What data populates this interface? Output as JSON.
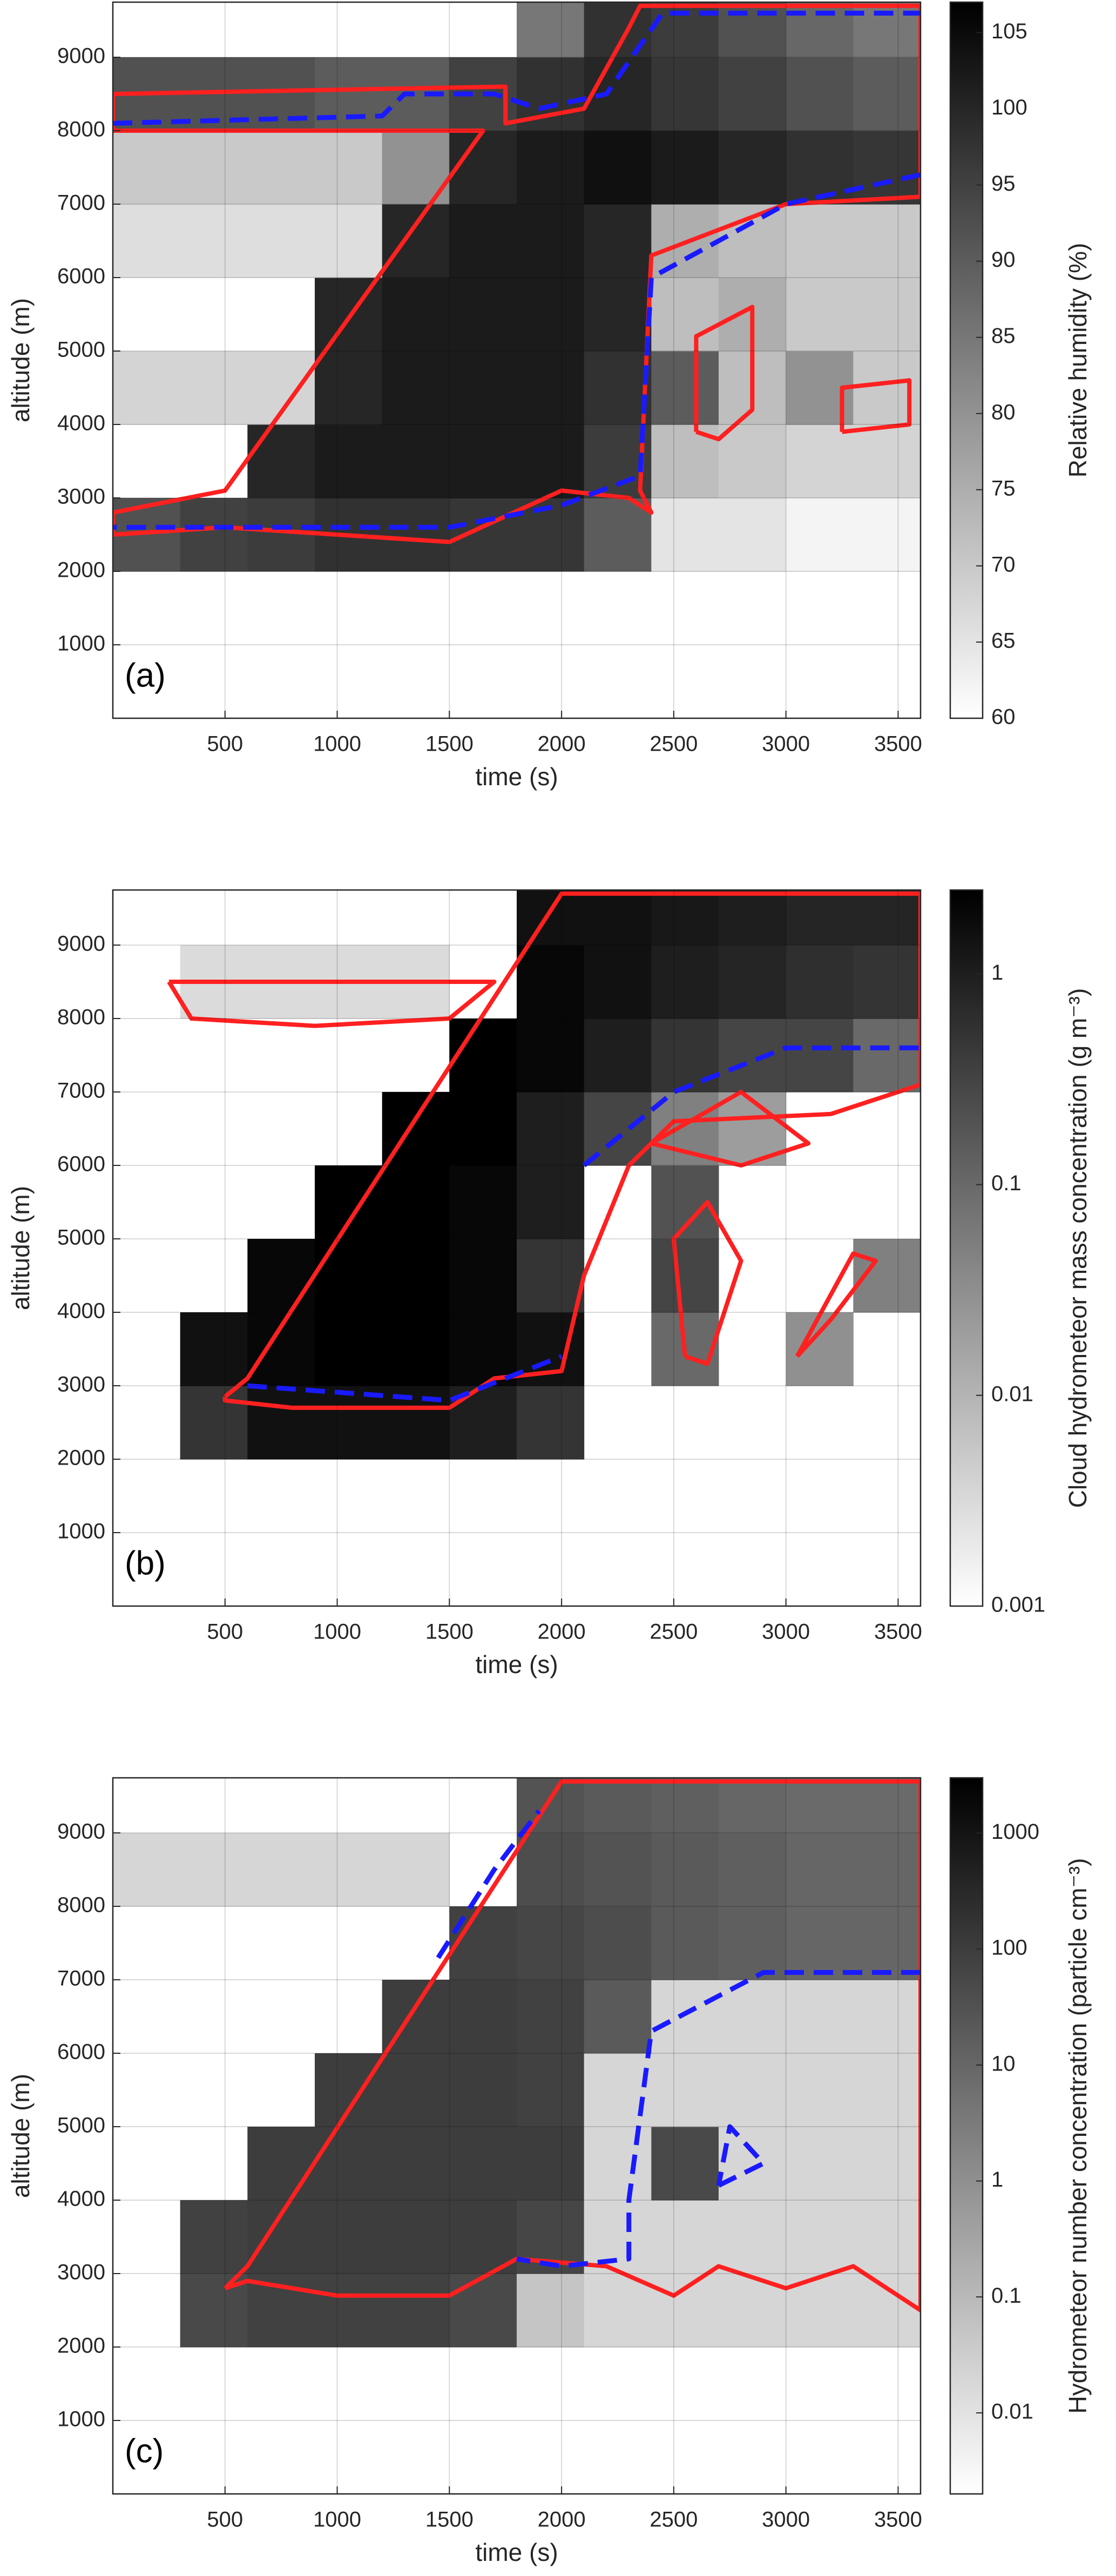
{
  "chart_data": [
    {
      "type": "heatmap",
      "panel_label": "(a)",
      "xlabel": "time (s)",
      "ylabel": "altitude (m)",
      "xlim": [
        0,
        3600
      ],
      "ylim": [
        0,
        9750
      ],
      "xticks": [
        500,
        1000,
        1500,
        2000,
        2500,
        3000,
        3500
      ],
      "yticks": [
        1000,
        2000,
        3000,
        4000,
        5000,
        6000,
        7000,
        8000,
        9000
      ],
      "grid": true,
      "cmap": [
        "#ffffff",
        "#000000"
      ],
      "colorbar": {
        "label": "Relative humidity (%)",
        "scale": "linear",
        "lim": [
          60,
          107
        ],
        "ticks": [
          60,
          65,
          70,
          75,
          80,
          85,
          90,
          95,
          100,
          105
        ]
      },
      "xbins": [
        0,
        300,
        600,
        900,
        1200,
        1500,
        1800,
        2100,
        2400,
        2700,
        3000,
        3300,
        3600
      ],
      "ybins": [
        0,
        1000,
        2000,
        3000,
        4000,
        5000,
        6000,
        7000,
        8000,
        9000,
        9750
      ],
      "z": [
        [
          null,
          null,
          null,
          null,
          null,
          null,
          null,
          null,
          null,
          null,
          null,
          null
        ],
        [
          null,
          null,
          null,
          null,
          null,
          null,
          null,
          null,
          null,
          null,
          null,
          null
        ],
        [
          92,
          95,
          96,
          98,
          98,
          97,
          97,
          90,
          65,
          65,
          62,
          62
        ],
        [
          null,
          null,
          100,
          102,
          102,
          102,
          102,
          96,
          72,
          70,
          68,
          68
        ],
        [
          68,
          68,
          68,
          100,
          102,
          102,
          102,
          98,
          90,
          72,
          80,
          70
        ],
        [
          null,
          null,
          null,
          100,
          102,
          102,
          102,
          100,
          72,
          75,
          70,
          70
        ],
        [
          66,
          66,
          66,
          66,
          100,
          102,
          102,
          100,
          75,
          72,
          70,
          70
        ],
        [
          70,
          70,
          70,
          70,
          80,
          100,
          102,
          104,
          102,
          100,
          98,
          97
        ],
        [
          92,
          92,
          92,
          90,
          90,
          95,
          98,
          100,
          97,
          95,
          92,
          90
        ],
        [
          null,
          null,
          null,
          null,
          null,
          null,
          85,
          98,
          96,
          92,
          88,
          85
        ]
      ],
      "contours": [
        {
          "color": "#ff2020",
          "style": "solid",
          "x": [
            0,
            1750,
            1750,
            2100,
            2300,
            2350,
            3600,
            3600,
            3000,
            2400,
            2350,
            2400,
            2300,
            2000,
            1500,
            1000,
            500,
            0,
            0,
            500,
            1650,
            0,
            0
          ],
          "y": [
            8500,
            8600,
            8100,
            8300,
            9400,
            9700,
            9700,
            7100,
            7000,
            6300,
            3100,
            2800,
            3000,
            3100,
            2400,
            2500,
            2600,
            2500,
            2800,
            3100,
            8000,
            8000,
            8500
          ]
        },
        {
          "color": "#ff2020",
          "style": "solid",
          "x": [
            2600,
            2600,
            2850,
            2850,
            2700,
            2600
          ],
          "y": [
            3900,
            5200,
            5600,
            4200,
            3800,
            3900
          ]
        },
        {
          "color": "#ff2020",
          "style": "solid",
          "x": [
            3250,
            3250,
            3550,
            3550,
            3250
          ],
          "y": [
            3900,
            4500,
            4600,
            4000,
            3900
          ]
        },
        {
          "color": "#1a1aff",
          "style": "dashed",
          "x": [
            0,
            1200,
            1300,
            1700,
            1900,
            2200,
            2450,
            3600
          ],
          "y": [
            8100,
            8200,
            8500,
            8500,
            8300,
            8500,
            9600,
            9600
          ]
        },
        {
          "color": "#1a1aff",
          "style": "dashed",
          "x": [
            3600,
            3000,
            2400,
            2350,
            2000,
            1500,
            900,
            500,
            0
          ],
          "y": [
            7400,
            7000,
            6000,
            3300,
            2900,
            2600,
            2600,
            2600,
            2600
          ]
        }
      ]
    },
    {
      "type": "heatmap",
      "panel_label": "(b)",
      "xlabel": "time (s)",
      "ylabel": "altitude (m)",
      "xlim": [
        0,
        3600
      ],
      "ylim": [
        0,
        9750
      ],
      "xticks": [
        500,
        1000,
        1500,
        2000,
        2500,
        3000,
        3500
      ],
      "yticks": [
        1000,
        2000,
        3000,
        4000,
        5000,
        6000,
        7000,
        8000,
        9000
      ],
      "grid": true,
      "cmap": [
        "#ffffff",
        "#000000"
      ],
      "colorbar": {
        "label": "Cloud hydrometeor mass concentration (g m⁻³)",
        "scale": "log",
        "lim": [
          0.001,
          2.5
        ],
        "ticks": [
          0.001,
          0.01,
          0.1,
          1
        ]
      },
      "xbins": [
        0,
        300,
        600,
        900,
        1200,
        1500,
        1800,
        2100,
        2400,
        2700,
        3000,
        3300,
        3600
      ],
      "ybins": [
        0,
        1000,
        2000,
        3000,
        4000,
        5000,
        6000,
        7000,
        8000,
        9000,
        9750
      ],
      "z": [
        [
          null,
          null,
          null,
          null,
          null,
          null,
          null,
          null,
          null,
          null,
          null,
          null
        ],
        [
          null,
          null,
          null,
          null,
          null,
          null,
          null,
          null,
          null,
          null,
          null,
          null
        ],
        [
          null,
          0.5,
          1.5,
          1.5,
          1.5,
          1,
          0.5,
          null,
          null,
          null,
          null,
          null
        ],
        [
          null,
          1.5,
          2,
          2.5,
          2.5,
          2,
          1.5,
          null,
          0.1,
          null,
          0.03,
          null
        ],
        [
          null,
          null,
          2,
          2.5,
          2.5,
          2,
          0.5,
          null,
          0.3,
          null,
          null,
          0.05
        ],
        [
          null,
          null,
          null,
          2.5,
          2.5,
          2,
          1,
          null,
          0.2,
          null,
          null,
          null
        ],
        [
          null,
          null,
          null,
          null,
          2.5,
          2.5,
          1,
          0.3,
          0.05,
          0.02,
          null,
          null
        ],
        [
          null,
          null,
          null,
          null,
          null,
          2.5,
          2,
          1,
          0.5,
          0.3,
          0.3,
          0.1
        ],
        [
          null,
          0.003,
          0.003,
          0.003,
          0.003,
          null,
          2,
          1.5,
          1,
          0.8,
          0.6,
          0.5
        ],
        [
          null,
          null,
          null,
          null,
          null,
          null,
          1.5,
          1.5,
          1.2,
          1,
          0.8,
          0.8
        ]
      ],
      "contours": [
        {
          "color": "#ff2020",
          "style": "solid",
          "x": [
            500,
            600,
            2000,
            3600,
            3600,
            3200,
            2500,
            2300,
            2100,
            2000,
            1700,
            1500,
            800,
            500,
            500
          ],
          "y": [
            2850,
            3100,
            9700,
            9700,
            7100,
            6700,
            6600,
            6000,
            4500,
            3200,
            3100,
            2700,
            2700,
            2800,
            2850
          ]
        },
        {
          "color": "#ff2020",
          "style": "solid",
          "x": [
            250,
            1700,
            1500,
            900,
            350,
            250
          ],
          "y": [
            8500,
            8500,
            8000,
            7900,
            8000,
            8500
          ]
        },
        {
          "color": "#ff2020",
          "style": "solid",
          "x": [
            2550,
            2500,
            2650,
            2800,
            2650,
            2550
          ],
          "y": [
            3400,
            5000,
            5500,
            4700,
            3300,
            3400
          ]
        },
        {
          "color": "#ff2020",
          "style": "solid",
          "x": [
            3050,
            3300,
            3400,
            3200,
            3050
          ],
          "y": [
            3400,
            4800,
            4700,
            3900,
            3400
          ]
        },
        {
          "color": "#ff2020",
          "style": "solid",
          "x": [
            2400,
            2800,
            3100,
            2800,
            2400
          ],
          "y": [
            6300,
            7000,
            6300,
            6000,
            6300
          ]
        },
        {
          "color": "#1a1aff",
          "style": "dashed",
          "x": [
            2100,
            2500,
            3000,
            3600
          ],
          "y": [
            6000,
            7000,
            7600,
            7600
          ]
        },
        {
          "color": "#1a1aff",
          "style": "dashed",
          "x": [
            600,
            1500,
            2000
          ],
          "y": [
            3000,
            2800,
            3400
          ]
        }
      ]
    },
    {
      "type": "heatmap",
      "panel_label": "(c)",
      "xlabel": "time (s)",
      "ylabel": "altitude (m)",
      "xlim": [
        0,
        3600
      ],
      "ylim": [
        0,
        9750
      ],
      "xticks": [
        500,
        1000,
        1500,
        2000,
        2500,
        3000,
        3500
      ],
      "yticks": [
        1000,
        2000,
        3000,
        4000,
        5000,
        6000,
        7000,
        8000,
        9000
      ],
      "grid": true,
      "cmap": [
        "#ffffff",
        "#000000"
      ],
      "colorbar": {
        "label": "Hydrometeor number concentration (particle cm⁻³)",
        "scale": "log",
        "lim": [
          0.002,
          3000
        ],
        "ticks": [
          0.01,
          0.1,
          1,
          10,
          100,
          1000
        ]
      },
      "xbins": [
        0,
        300,
        600,
        900,
        1200,
        1500,
        1800,
        2100,
        2400,
        2700,
        3000,
        3300,
        3600
      ],
      "ybins": [
        0,
        1000,
        2000,
        3000,
        4000,
        5000,
        6000,
        7000,
        8000,
        9000,
        9750
      ],
      "z": [
        [
          null,
          null,
          null,
          null,
          null,
          null,
          null,
          null,
          null,
          null,
          null,
          null
        ],
        [
          null,
          null,
          null,
          null,
          null,
          null,
          null,
          null,
          null,
          null,
          null,
          null
        ],
        [
          null,
          50,
          80,
          80,
          80,
          50,
          0.05,
          0.02,
          0.02,
          0.02,
          0.02,
          0.02
        ],
        [
          null,
          80,
          100,
          100,
          100,
          100,
          60,
          0.02,
          0.02,
          0.02,
          0.02,
          0.02
        ],
        [
          null,
          null,
          100,
          100,
          100,
          100,
          100,
          0.02,
          50,
          0.02,
          0.02,
          0.02
        ],
        [
          null,
          null,
          null,
          100,
          100,
          100,
          80,
          0.02,
          0.02,
          0.02,
          0.02,
          0.02
        ],
        [
          null,
          null,
          null,
          null,
          100,
          100,
          80,
          20,
          0.02,
          0.02,
          0.02,
          0.02
        ],
        [
          null,
          null,
          null,
          null,
          null,
          80,
          60,
          40,
          20,
          15,
          10,
          10
        ],
        [
          0.02,
          0.02,
          0.02,
          0.02,
          0.02,
          null,
          40,
          30,
          20,
          15,
          10,
          10
        ],
        [
          null,
          null,
          null,
          null,
          null,
          null,
          30,
          20,
          15,
          10,
          8,
          8
        ]
      ],
      "contours": [
        {
          "color": "#ff2020",
          "style": "solid",
          "x": [
            500,
            600,
            2000,
            3600,
            3600,
            3500,
            3300,
            3000,
            2700,
            2500,
            2200,
            1800,
            1500,
            1000,
            600,
            500
          ],
          "y": [
            2800,
            3100,
            9700,
            9700,
            2500,
            2700,
            3100,
            2800,
            3100,
            2700,
            3100,
            3200,
            2700,
            2700,
            2900,
            2800
          ]
        },
        {
          "color": "#1a1aff",
          "style": "dashed",
          "x": [
            1450,
            1700,
            1900
          ],
          "y": [
            7300,
            8500,
            9300
          ]
        },
        {
          "color": "#1a1aff",
          "style": "dashed",
          "x": [
            3600,
            2900,
            2400,
            2300,
            2300,
            2000,
            1800
          ],
          "y": [
            7100,
            7100,
            6300,
            4000,
            3200,
            3100,
            3200
          ]
        },
        {
          "color": "#1a1aff",
          "style": "dashed",
          "x": [
            2700,
            2900,
            2750,
            2700
          ],
          "y": [
            4200,
            4500,
            5000,
            4200
          ]
        }
      ]
    }
  ]
}
